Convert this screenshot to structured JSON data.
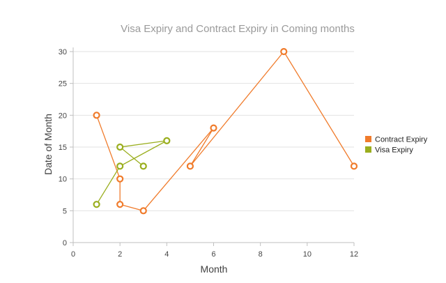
{
  "chart_data": {
    "type": "line",
    "title": "Visa Expiry and Contract Expiry in Coming months",
    "xlabel": "Month",
    "ylabel": "Date of Month",
    "xlim": [
      0,
      12
    ],
    "ylim": [
      0,
      30
    ],
    "x_ticks": [
      0,
      2,
      4,
      6,
      8,
      10,
      12
    ],
    "y_ticks": [
      0,
      5,
      10,
      15,
      20,
      25,
      30
    ],
    "grid": "horizontal",
    "legend_position": "right",
    "series": [
      {
        "name": "Contract Expiry",
        "color": "#f07b2b",
        "points": [
          [
            1,
            20
          ],
          [
            2,
            10
          ],
          [
            2,
            6
          ],
          [
            3,
            5
          ],
          [
            6,
            18
          ],
          [
            5,
            12
          ],
          [
            9,
            30
          ],
          [
            12,
            12
          ]
        ]
      },
      {
        "name": "Visa Expiry",
        "color": "#9aae1e",
        "points": [
          [
            1,
            6
          ],
          [
            2,
            12
          ],
          [
            4,
            16
          ],
          [
            2,
            15
          ],
          [
            3,
            12
          ]
        ]
      }
    ]
  }
}
